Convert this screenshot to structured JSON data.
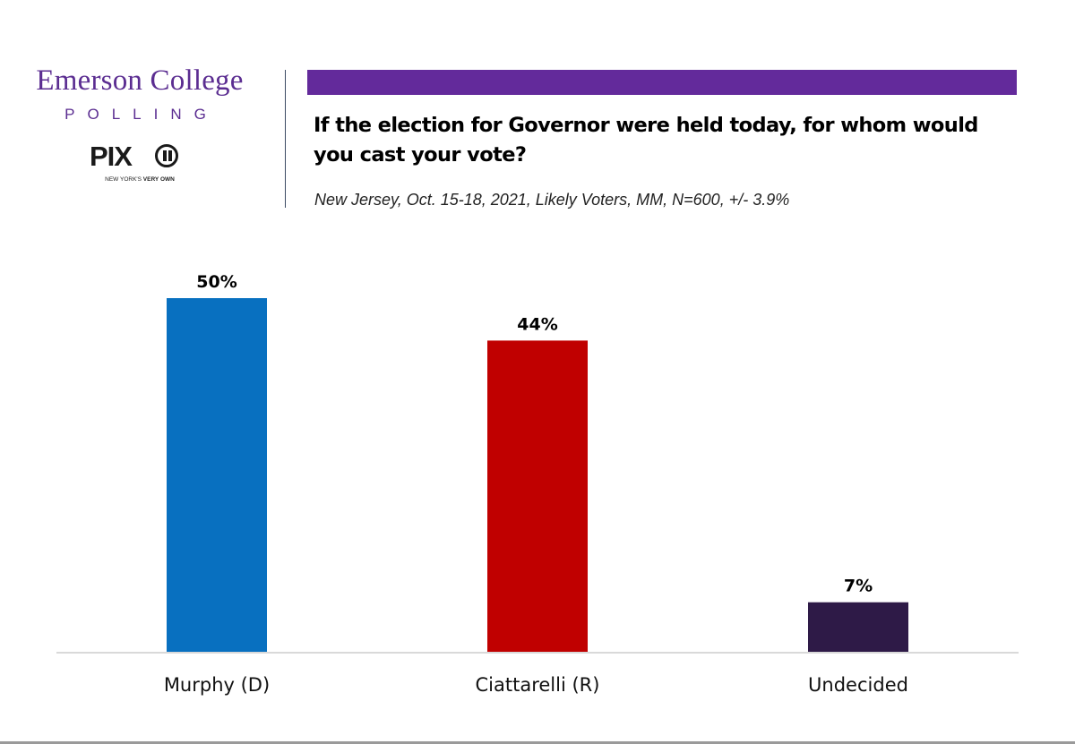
{
  "header": {
    "org_name": "Emerson College",
    "org_sub": "POLLING",
    "partner_logo_text": "PIX",
    "partner_logo_number": "11",
    "partner_tagline_regular": "NEW YORK'S ",
    "partner_tagline_bold": "VERY OWN",
    "accent_color": "#632a9b"
  },
  "chart_data": {
    "type": "bar",
    "title": "If the election for Governor were held today, for whom would you cast your vote?",
    "subtitle": "New Jersey, Oct. 15-18, 2021, Likely Voters, MM, N=600, +/- 3.9%",
    "xlabel": "",
    "ylabel": "",
    "ylim": [
      0,
      50
    ],
    "grid": false,
    "legend": "none",
    "categories": [
      "Murphy (D)",
      "Ciattarelli (R)",
      "Undecided"
    ],
    "values": [
      50,
      44,
      7
    ],
    "data_labels": [
      "50%",
      "44%",
      "7%"
    ],
    "colors": [
      "#0870c0",
      "#c00000",
      "#2e1a47"
    ]
  }
}
